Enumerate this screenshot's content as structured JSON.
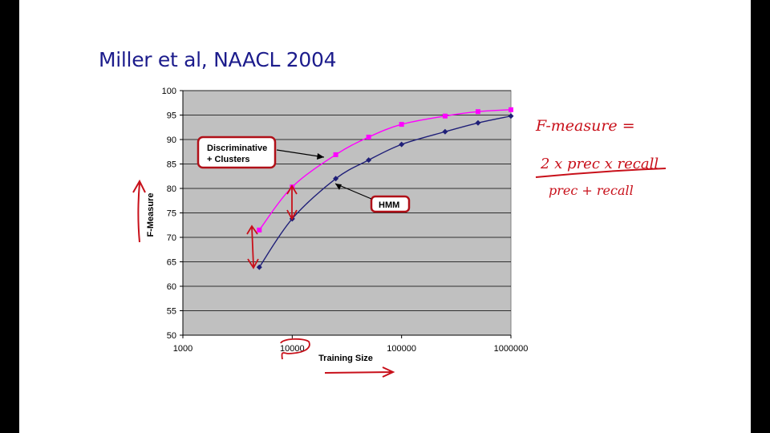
{
  "slide": {
    "title": "Miller et al, NAACL 2004"
  },
  "chart_data": {
    "type": "line",
    "title": "",
    "xlabel": "Training Size",
    "ylabel": "F-Measure",
    "x_scale": "log",
    "xlim": [
      1000,
      1000000
    ],
    "ylim": [
      50,
      100
    ],
    "x_ticks": [
      "1000",
      "10000",
      "100000",
      "1000000"
    ],
    "y_ticks": [
      "50",
      "55",
      "60",
      "65",
      "70",
      "75",
      "80",
      "85",
      "90",
      "95",
      "100"
    ],
    "grid": true,
    "plot_background": "#c0c0c0",
    "series": [
      {
        "name": "Discriminative + Clusters",
        "color": "#ff00ff",
        "marker": "square",
        "x": [
          5000,
          10000,
          25000,
          50000,
          100000,
          250000,
          500000,
          1000000
        ],
        "y": [
          71.5,
          80.3,
          86.9,
          90.5,
          93.1,
          94.8,
          95.7,
          96.1
        ]
      },
      {
        "name": "HMM",
        "color": "#1f1f78",
        "marker": "diamond",
        "x": [
          5000,
          10000,
          25000,
          50000,
          100000,
          250000,
          500000,
          1000000
        ],
        "y": [
          63.9,
          73.8,
          82.0,
          85.8,
          89.0,
          91.6,
          93.4,
          94.8
        ]
      }
    ],
    "annotations": [
      {
        "lines": [
          "Discriminative",
          "+ Clusters"
        ],
        "points_to": "Discriminative + Clusters"
      },
      {
        "lines": [
          "HMM"
        ],
        "points_to": "HMM"
      }
    ]
  },
  "handwriting": {
    "formula_lhs": "F-measure =",
    "numerator": "2 x prec x recall",
    "denominator": "prec + recall",
    "color": "#c8101a"
  }
}
